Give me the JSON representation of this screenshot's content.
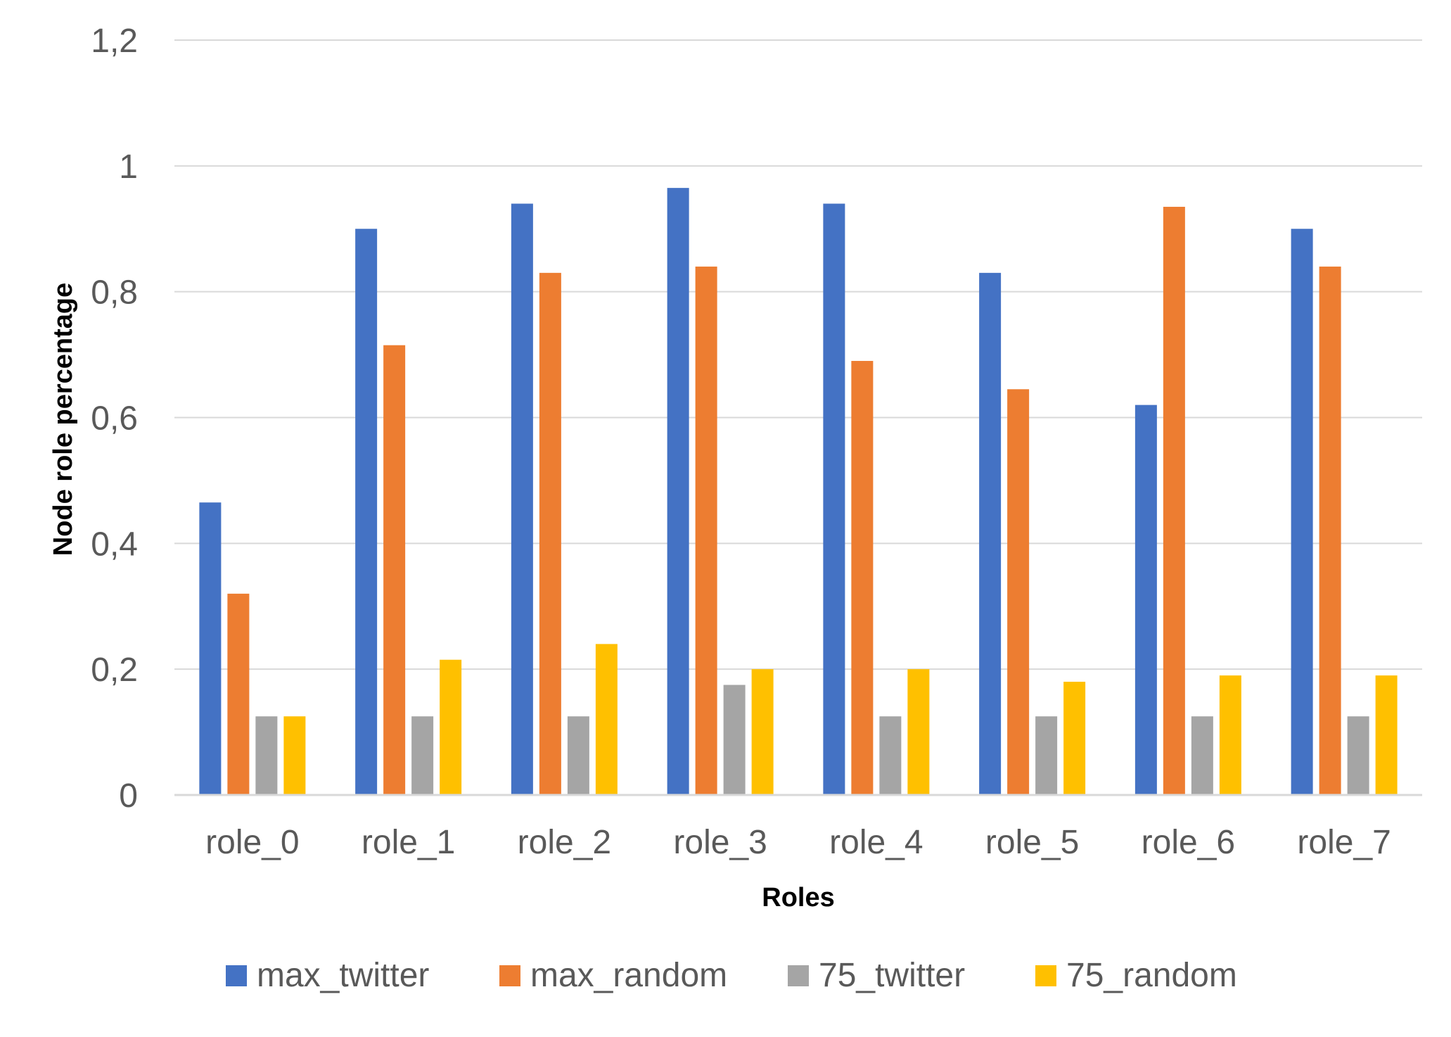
{
  "chart_data": {
    "type": "bar",
    "categories": [
      "role_0",
      "role_1",
      "role_2",
      "role_3",
      "role_4",
      "role_5",
      "role_6",
      "role_7"
    ],
    "series": [
      {
        "name": "max_twitter",
        "color": "#4472C4",
        "values": [
          0.465,
          0.9,
          0.94,
          0.965,
          0.94,
          0.83,
          0.62,
          0.9
        ]
      },
      {
        "name": "max_random",
        "color": "#ED7D31",
        "values": [
          0.32,
          0.715,
          0.83,
          0.84,
          0.69,
          0.645,
          0.935,
          0.84
        ]
      },
      {
        "name": "75_twitter",
        "color": "#A5A5A5",
        "values": [
          0.125,
          0.125,
          0.125,
          0.175,
          0.125,
          0.125,
          0.125,
          0.125
        ]
      },
      {
        "name": "75_random",
        "color": "#FFC000",
        "values": [
          0.125,
          0.215,
          0.24,
          0.2,
          0.2,
          0.18,
          0.19,
          0.19
        ]
      }
    ],
    "title": "",
    "xlabel": "Roles",
    "ylabel": "Node role percentage",
    "ylim": [
      0,
      1.2
    ],
    "yticks": [
      0,
      0.2,
      0.4,
      0.6,
      0.8,
      1,
      1.2
    ],
    "ytick_labels": [
      "0",
      "0,2",
      "0,4",
      "0,6",
      "0,8",
      "1",
      "1,2"
    ],
    "grid": true,
    "legend_position": "bottom"
  }
}
